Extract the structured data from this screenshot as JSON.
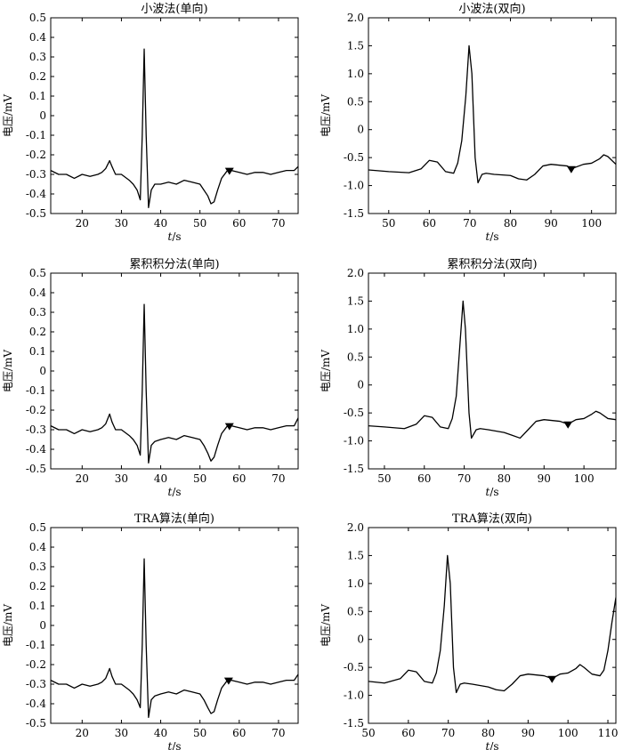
{
  "figure": {
    "panels": [
      {
        "title": "小波法(单向)",
        "ylabel": "电压/mV",
        "xlabel_italic": "t",
        "xlabel_rest": "/s"
      },
      {
        "title": "小波法(双向)",
        "ylabel": "电压/mV",
        "xlabel_italic": "t",
        "xlabel_rest": "/s"
      },
      {
        "title": "累积积分法(单向)",
        "ylabel": "电压/mV",
        "xlabel_italic": "t",
        "xlabel_rest": "/s"
      },
      {
        "title": "累积积分法(双向)",
        "ylabel": "电压/mV",
        "xlabel_italic": "t",
        "xlabel_rest": "/s"
      },
      {
        "title": "TRA算法(单向)",
        "ylabel": "电压/mV",
        "xlabel_italic": "t",
        "xlabel_rest": "/s"
      },
      {
        "title": "TRA算法(双向)",
        "ylabel": "电压/mV",
        "xlabel_italic": "t",
        "xlabel_rest": "/s"
      }
    ]
  },
  "chart_data": [
    {
      "type": "line",
      "title": "小波法(单向)",
      "xlabel": "t/s",
      "ylabel": "电压/mV",
      "xlim": [
        12,
        75
      ],
      "ylim": [
        -0.5,
        0.5
      ],
      "xticks": [
        20,
        30,
        40,
        50,
        60,
        70
      ],
      "yticks": [
        -0.5,
        -0.4,
        -0.3,
        -0.2,
        -0.1,
        0,
        0.1,
        0.2,
        0.3,
        0.4,
        0.5
      ],
      "marker_x": 57.5,
      "x": [
        12,
        14,
        16,
        18,
        20,
        22,
        24,
        25,
        26,
        27,
        27.6,
        28.5,
        30,
        32,
        33,
        34,
        34.8,
        35.3,
        35.8,
        36.3,
        36.9,
        37.6,
        38.5,
        40,
        42,
        44,
        46,
        48,
        50,
        51,
        52,
        52.8,
        53.6,
        54.5,
        55.5,
        57,
        58,
        60,
        62,
        64,
        66,
        68,
        70,
        72,
        74,
        75
      ],
      "y": [
        -0.28,
        -0.3,
        -0.3,
        -0.32,
        -0.3,
        -0.31,
        -0.3,
        -0.29,
        -0.27,
        -0.23,
        -0.26,
        -0.3,
        -0.3,
        -0.33,
        -0.35,
        -0.38,
        -0.43,
        -0.1,
        0.34,
        -0.1,
        -0.47,
        -0.38,
        -0.35,
        -0.35,
        -0.34,
        -0.35,
        -0.33,
        -0.34,
        -0.35,
        -0.38,
        -0.41,
        -0.45,
        -0.44,
        -0.38,
        -0.32,
        -0.28,
        -0.28,
        -0.29,
        -0.3,
        -0.29,
        -0.29,
        -0.3,
        -0.29,
        -0.28,
        -0.28,
        -0.26
      ]
    },
    {
      "type": "line",
      "title": "小波法(双向)",
      "xlabel": "t/s",
      "ylabel": "电压/mV",
      "xlim": [
        45,
        106
      ],
      "ylim": [
        -1.5,
        2.0
      ],
      "xticks": [
        50,
        60,
        70,
        80,
        90,
        100
      ],
      "yticks": [
        -1.5,
        -1.0,
        -0.5,
        0,
        0.5,
        1.0,
        1.5,
        2.0
      ],
      "marker_x": 95,
      "x": [
        45,
        50,
        55,
        58,
        60,
        62,
        64,
        66,
        67,
        68,
        69,
        69.8,
        70.5,
        71.3,
        72,
        73,
        74,
        76,
        80,
        82,
        84,
        86,
        88,
        90,
        94,
        95,
        98,
        100,
        102,
        103,
        104,
        106
      ],
      "y": [
        -0.72,
        -0.75,
        -0.77,
        -0.7,
        -0.55,
        -0.58,
        -0.75,
        -0.78,
        -0.6,
        -0.2,
        0.6,
        1.5,
        1.0,
        -0.5,
        -0.95,
        -0.8,
        -0.78,
        -0.8,
        -0.82,
        -0.88,
        -0.9,
        -0.8,
        -0.65,
        -0.62,
        -0.65,
        -0.7,
        -0.62,
        -0.6,
        -0.52,
        -0.45,
        -0.48,
        -0.62
      ]
    },
    {
      "type": "line",
      "title": "累积积分法(单向)",
      "xlabel": "t/s",
      "ylabel": "电压/mV",
      "xlim": [
        12,
        75
      ],
      "ylim": [
        -0.5,
        0.5
      ],
      "xticks": [
        20,
        30,
        40,
        50,
        60,
        70
      ],
      "yticks": [
        -0.5,
        -0.4,
        -0.3,
        -0.2,
        -0.1,
        0,
        0.1,
        0.2,
        0.3,
        0.4,
        0.5
      ],
      "marker_x": 57.5,
      "x": [
        12,
        14,
        16,
        18,
        20,
        22,
        24,
        25,
        26,
        27,
        27.6,
        28.5,
        30,
        32,
        33,
        34,
        34.8,
        35.3,
        35.8,
        36.3,
        36.9,
        37.6,
        38.5,
        40,
        42,
        44,
        46,
        48,
        50,
        51,
        52,
        52.8,
        53.6,
        54.5,
        55.5,
        57,
        58,
        60,
        62,
        64,
        66,
        68,
        70,
        72,
        74,
        75
      ],
      "y": [
        -0.28,
        -0.3,
        -0.3,
        -0.32,
        -0.3,
        -0.31,
        -0.3,
        -0.29,
        -0.27,
        -0.22,
        -0.26,
        -0.3,
        -0.3,
        -0.33,
        -0.35,
        -0.38,
        -0.43,
        -0.1,
        0.34,
        -0.1,
        -0.47,
        -0.38,
        -0.36,
        -0.35,
        -0.34,
        -0.35,
        -0.33,
        -0.34,
        -0.35,
        -0.38,
        -0.42,
        -0.46,
        -0.44,
        -0.38,
        -0.32,
        -0.28,
        -0.28,
        -0.29,
        -0.3,
        -0.29,
        -0.29,
        -0.3,
        -0.29,
        -0.28,
        -0.28,
        -0.24
      ]
    },
    {
      "type": "line",
      "title": "累积积分法(双向)",
      "xlabel": "t/s",
      "ylabel": "电压/mV",
      "xlim": [
        46,
        108
      ],
      "ylim": [
        -1.5,
        2.0
      ],
      "xticks": [
        50,
        60,
        70,
        80,
        90,
        100
      ],
      "yticks": [
        -1.5,
        -1.0,
        -0.5,
        0,
        0.5,
        1.0,
        1.5,
        2.0
      ],
      "marker_x": 96,
      "x": [
        46,
        50,
        55,
        58,
        60,
        62,
        64,
        66,
        67,
        68,
        68.8,
        69.7,
        70.3,
        71.2,
        71.8,
        73,
        74,
        76,
        80,
        82,
        84,
        86,
        88,
        90,
        94,
        96,
        98,
        100,
        102,
        103,
        104,
        106,
        108
      ],
      "y": [
        -0.73,
        -0.75,
        -0.78,
        -0.7,
        -0.55,
        -0.58,
        -0.75,
        -0.78,
        -0.6,
        -0.2,
        0.6,
        1.5,
        1.0,
        -0.5,
        -0.95,
        -0.8,
        -0.78,
        -0.8,
        -0.85,
        -0.9,
        -0.95,
        -0.8,
        -0.65,
        -0.62,
        -0.65,
        -0.7,
        -0.62,
        -0.6,
        -0.52,
        -0.47,
        -0.5,
        -0.6,
        -0.62
      ]
    },
    {
      "type": "line",
      "title": "TRA算法(单向)",
      "xlabel": "t/s",
      "ylabel": "电压/mV",
      "xlim": [
        12,
        75
      ],
      "ylim": [
        -0.5,
        0.5
      ],
      "xticks": [
        20,
        30,
        40,
        50,
        60,
        70
      ],
      "yticks": [
        -0.5,
        -0.4,
        -0.3,
        -0.2,
        -0.1,
        0,
        0.1,
        0.2,
        0.3,
        0.4,
        0.5
      ],
      "marker_x": 57.3,
      "x": [
        12,
        14,
        16,
        18,
        20,
        22,
        24,
        25,
        26,
        27,
        27.6,
        28.5,
        30,
        32,
        33,
        34,
        34.8,
        35.3,
        35.8,
        36.3,
        36.9,
        37.6,
        38.5,
        40,
        42,
        44,
        46,
        48,
        50,
        51,
        52,
        52.8,
        53.6,
        54.5,
        55.5,
        57,
        58,
        60,
        62,
        64,
        66,
        68,
        70,
        72,
        74,
        75
      ],
      "y": [
        -0.28,
        -0.3,
        -0.3,
        -0.32,
        -0.3,
        -0.31,
        -0.3,
        -0.29,
        -0.27,
        -0.22,
        -0.26,
        -0.3,
        -0.3,
        -0.33,
        -0.35,
        -0.38,
        -0.42,
        -0.1,
        0.34,
        -0.1,
        -0.47,
        -0.38,
        -0.36,
        -0.35,
        -0.34,
        -0.35,
        -0.33,
        -0.34,
        -0.35,
        -0.38,
        -0.42,
        -0.45,
        -0.44,
        -0.38,
        -0.32,
        -0.28,
        -0.28,
        -0.29,
        -0.3,
        -0.29,
        -0.29,
        -0.3,
        -0.29,
        -0.28,
        -0.28,
        -0.25
      ]
    },
    {
      "type": "line",
      "title": "TRA算法(双向)",
      "xlabel": "t/s",
      "ylabel": "电压/mV",
      "xlim": [
        50,
        112
      ],
      "ylim": [
        -1.5,
        2.0
      ],
      "xticks": [
        50,
        60,
        70,
        80,
        90,
        100,
        110
      ],
      "yticks": [
        -1.5,
        -1.0,
        -0.5,
        0,
        0.5,
        1.0,
        1.5,
        2.0
      ],
      "marker_x": 96,
      "x": [
        50,
        54,
        58,
        60,
        62,
        64,
        66,
        67,
        68,
        69,
        69.8,
        70.5,
        71.3,
        72,
        73,
        74,
        76,
        80,
        82,
        84,
        86,
        88,
        90,
        94,
        96,
        98,
        100,
        102,
        103,
        104,
        106,
        108,
        109,
        110,
        111,
        112
      ],
      "y": [
        -0.75,
        -0.78,
        -0.7,
        -0.55,
        -0.58,
        -0.75,
        -0.78,
        -0.6,
        -0.2,
        0.6,
        1.5,
        1.0,
        -0.5,
        -0.95,
        -0.8,
        -0.78,
        -0.8,
        -0.85,
        -0.9,
        -0.92,
        -0.8,
        -0.65,
        -0.62,
        -0.65,
        -0.7,
        -0.62,
        -0.6,
        -0.52,
        -0.45,
        -0.5,
        -0.62,
        -0.65,
        -0.55,
        -0.2,
        0.3,
        0.75
      ]
    }
  ]
}
